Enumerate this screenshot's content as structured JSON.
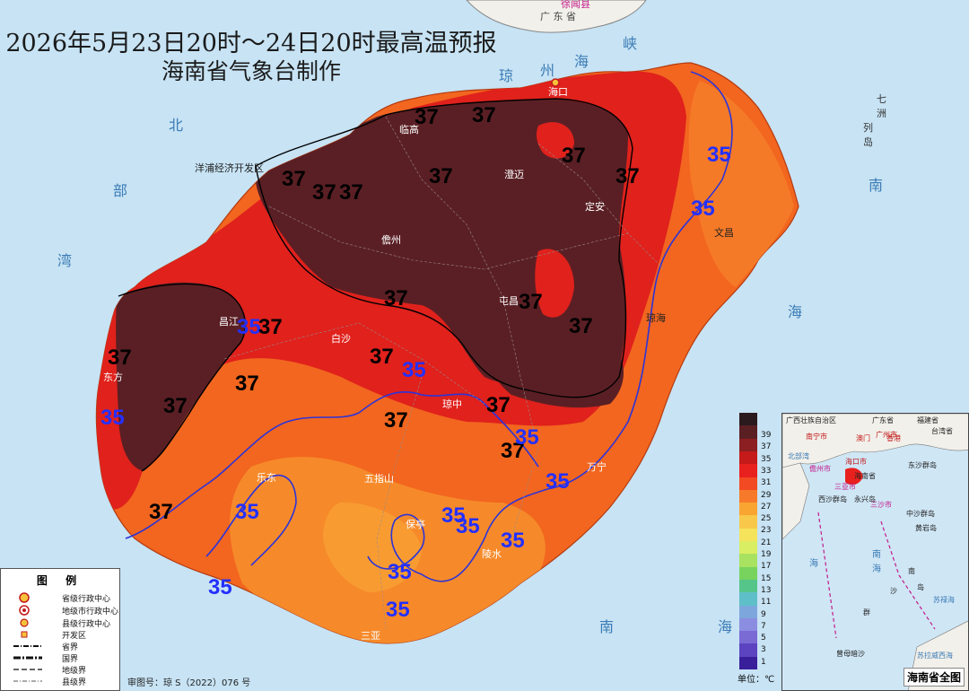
{
  "title_line1": "2026年5月23日20时～24日20时最高温预报",
  "title_line2": "海南省气象台制作",
  "top_labels": {
    "province": "广 东 省",
    "county": "徐闻县"
  },
  "sea_labels": [
    "琼",
    "州",
    "海",
    "峡",
    "北",
    "部",
    "湾",
    "南",
    "海",
    "七",
    "洲",
    "列",
    "岛",
    "南",
    "海"
  ],
  "cities": [
    "海口",
    "临高",
    "澄迈",
    "定安",
    "文昌",
    "洋浦经济开发区",
    "儋州",
    "屯昌",
    "琼海",
    "昌江",
    "白沙",
    "东方",
    "琼中",
    "万宁",
    "乐东",
    "五指山",
    "保亭",
    "陵水",
    "三亚"
  ],
  "isotherm_values": [
    "37",
    "37",
    "37",
    "37",
    "37",
    "37",
    "37",
    "35",
    "35",
    "37",
    "37",
    "37",
    "35",
    "37",
    "37",
    "37",
    "35",
    "37",
    "37",
    "37",
    "37",
    "37",
    "35",
    "37",
    "37",
    "35",
    "35",
    "35",
    "37",
    "35",
    "35",
    "35",
    "35",
    "35",
    "35",
    "35",
    "35"
  ],
  "colorbar": {
    "ticks": [
      "39",
      "37",
      "35",
      "33",
      "31",
      "29",
      "27",
      "25",
      "23",
      "21",
      "19",
      "17",
      "15",
      "13",
      "11",
      "9",
      "7",
      "5",
      "3",
      "1"
    ],
    "colors": [
      "#2a1a1e",
      "#5a1f22",
      "#8b1f22",
      "#c51a1a",
      "#e8201e",
      "#f24a22",
      "#f77a2a",
      "#f9a531",
      "#f8c84a",
      "#f5e35c",
      "#d9ee62",
      "#a8e260",
      "#77d35d",
      "#55c58a",
      "#5fbfc9",
      "#7da7dc",
      "#8b8ee0",
      "#7a6ad4",
      "#5c44c0",
      "#3a1f9a"
    ],
    "unit": "单位：℃"
  },
  "approval": "审图号：琼 S（2022）076 号",
  "legend": {
    "title": "图 例",
    "items": [
      "省级行政中心",
      "地级市行政中心",
      "县级行政中心",
      "开发区",
      "省界",
      "国界",
      "地级界",
      "县级界"
    ]
  },
  "inset": {
    "title": "海南省全图",
    "labels": [
      "广西壮族自治区",
      "广东省",
      "福建省",
      "台湾省",
      "南宁市",
      "广州市",
      "澳门",
      "香港",
      "北部湾",
      "海口市",
      "海南省",
      "儋州市",
      "三亚市",
      "东沙群岛",
      "西沙群岛",
      "永兴岛",
      "三沙市",
      "中沙群岛",
      "黄岩岛",
      "南",
      "海",
      "南",
      "沙",
      "群",
      "岛",
      "苏禄海",
      "曾母暗沙",
      "苏拉威西海",
      "海"
    ]
  }
}
